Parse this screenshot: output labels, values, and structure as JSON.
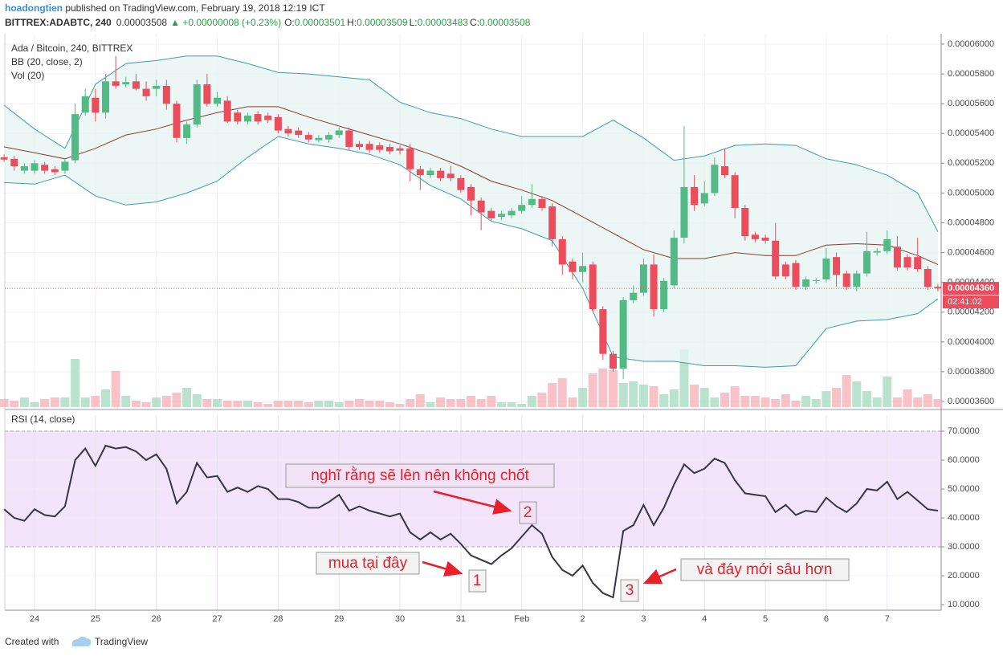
{
  "header": {
    "author": "hoadongtien",
    "published": " published on TradingView.com, February 19, 2018 12:19 ICT",
    "symbol": "BITTREX:ADABTC, 240",
    "last": "0.00003508",
    "change": "▲ +0.00000008 (+0.23%)",
    "ohlc": [
      {
        "label": "O:",
        "value": "0.00003501"
      },
      {
        "label": "H:",
        "value": "0.00003509"
      },
      {
        "label": "L:",
        "value": "0.00003483"
      },
      {
        "label": "C:",
        "value": "0.00003508"
      }
    ]
  },
  "chart_data": [
    {
      "type": "candlestick",
      "legend": [
        "Ada / Bitcoin, 240, BITTREX",
        "BB (20, close, 2)",
        "Vol (20)"
      ],
      "categories": [
        null,
        null,
        null,
        "24",
        null,
        null,
        null,
        null,
        null,
        "25",
        null,
        null,
        null,
        null,
        null,
        "26",
        null,
        null,
        null,
        null,
        null,
        "27",
        null,
        null,
        null,
        null,
        null,
        "28",
        null,
        null,
        null,
        null,
        null,
        "29",
        null,
        null,
        null,
        null,
        null,
        "30",
        null,
        null,
        null,
        null,
        null,
        "31",
        null,
        null,
        null,
        null,
        null,
        "Feb",
        null,
        null,
        null,
        null,
        null,
        "2",
        null,
        null,
        null,
        null,
        null,
        "3",
        null,
        null,
        null,
        null,
        null,
        "4",
        null,
        null,
        null,
        null,
        null,
        "5",
        null,
        null,
        null,
        null,
        null,
        "6",
        null,
        null,
        null,
        null,
        null,
        "7",
        null,
        null,
        null,
        null,
        null
      ],
      "open": [
        5.24e-05,
        5.23e-05,
        5.15e-05,
        5.15e-05,
        5.19e-05,
        5.16e-05,
        5.15e-05,
        5.22e-05,
        5.54e-05,
        5.64e-05,
        5.54e-05,
        5.75e-05,
        5.73e-05,
        5.75e-05,
        5.7e-05,
        5.7e-05,
        5.72e-05,
        5.6e-05,
        5.37e-05,
        5.46e-05,
        5.73e-05,
        5.6e-05,
        5.62e-05,
        5.54e-05,
        5.48e-05,
        5.53e-05,
        5.52e-05,
        5.51e-05,
        5.43e-05,
        5.42e-05,
        5.39e-05,
        5.355e-05,
        5.36e-05,
        5.39e-05,
        5.42e-05,
        5.33e-05,
        5.33e-05,
        5.32e-05,
        5.31e-05,
        5.3e-05,
        5.3e-05,
        5.16e-05,
        5.12e-05,
        5.15e-05,
        5.13e-05,
        5.1e-05,
        5.04e-05,
        4.95e-05,
        4.88e-05,
        4.84e-05,
        4.85e-05,
        4.88e-05,
        4.92e-05,
        4.96e-05,
        4.91e-05,
        4.69e-05,
        4.54e-05,
        4.47e-05,
        4.52e-05,
        4.22e-05,
        3.92e-05,
        3.82e-05,
        4.28e-05,
        4.33e-05,
        4.52e-05,
        4.22e-05,
        4.38e-05,
        4.7e-05,
        5.04e-05,
        4.93e-05,
        5e-05,
        5.18e-05,
        5.12e-05,
        4.9e-05,
        4.72e-05,
        4.7e-05,
        4.68e-05,
        4.52e-05,
        4.53e-05,
        4.37e-05,
        4.41e-05,
        4.42e-05,
        4.57e-05,
        4.46e-05,
        4.37e-05,
        4.46e-05,
        4.6e-05,
        4.61e-05,
        4.64e-05,
        4.57e-05,
        4.57e-05,
        4.49e-05,
        4.37e-05
      ],
      "high": [
        5.26e-05,
        5.25e-05,
        5.2e-05,
        5.22e-05,
        5.21e-05,
        5.18e-05,
        5.23e-05,
        5.6e-05,
        5.7e-05,
        5.7e-05,
        5.8e-05,
        5.92e-05,
        5.78e-05,
        5.8e-05,
        5.75e-05,
        5.76e-05,
        5.76e-05,
        5.62e-05,
        5.48e-05,
        5.76e-05,
        5.8e-05,
        5.68e-05,
        5.65e-05,
        5.56e-05,
        5.54e-05,
        5.55e-05,
        5.54e-05,
        5.53e-05,
        5.45e-05,
        5.44e-05,
        5.41e-05,
        5.39e-05,
        5.41e-05,
        5.44e-05,
        5.44e-05,
        5.35e-05,
        5.35e-05,
        5.34e-05,
        5.33e-05,
        5.32e-05,
        5.33e-05,
        5.18e-05,
        5.17e-05,
        5.17e-05,
        5.18e-05,
        5.12e-05,
        5.06e-05,
        4.97e-05,
        4.9e-05,
        4.88e-05,
        4.9e-05,
        4.98e-05,
        5.06e-05,
        4.98e-05,
        4.93e-05,
        4.71e-05,
        4.56e-05,
        4.6e-05,
        4.54e-05,
        4.24e-05,
        3.94e-05,
        4.3e-05,
        4.38e-05,
        4.56e-05,
        4.59e-05,
        4.43e-05,
        4.75e-05,
        5.45e-05,
        5.12e-05,
        5.08e-05,
        5.24e-05,
        5.3e-05,
        5.14e-05,
        4.92e-05,
        4.74e-05,
        4.72e-05,
        4.8e-05,
        4.54e-05,
        4.55e-05,
        4.44e-05,
        4.43e-05,
        4.63e-05,
        4.6e-05,
        4.48e-05,
        4.48e-05,
        4.74e-05,
        4.63e-05,
        4.75e-05,
        4.71e-05,
        4.59e-05,
        4.7e-05,
        4.51e-05,
        4.39e-05
      ],
      "low": [
        5.21e-05,
        5.15e-05,
        5.13e-05,
        5.13e-05,
        5.13e-05,
        5.12e-05,
        5.13e-05,
        5.2e-05,
        5.52e-05,
        5.48e-05,
        5.5e-05,
        5.7e-05,
        5.71e-05,
        5.69e-05,
        5.62e-05,
        5.65e-05,
        5.56e-05,
        5.34e-05,
        5.33e-05,
        5.44e-05,
        5.58e-05,
        5.58e-05,
        5.47e-05,
        5.46e-05,
        5.46e-05,
        5.46e-05,
        5.47e-05,
        5.4e-05,
        5.38e-05,
        5.37e-05,
        5.34e-05,
        5.34e-05,
        5.34e-05,
        5.37e-05,
        5.29e-05,
        5.29e-05,
        5.27e-05,
        5.27e-05,
        5.26e-05,
        5.26e-05,
        5.08e-05,
        5.02e-05,
        5.1e-05,
        5.08e-05,
        5.08e-05,
        5e-05,
        4.85e-05,
        4.75e-05,
        4.81e-05,
        4.82e-05,
        4.83e-05,
        4.86e-05,
        4.9e-05,
        4.88e-05,
        4.64e-05,
        4.45e-05,
        4.42e-05,
        4.4e-05,
        4.2e-05,
        3.88e-05,
        3.8e-05,
        3.75e-05,
        4.26e-05,
        4.31e-05,
        4.17e-05,
        4.2e-05,
        4.36e-05,
        4.66e-05,
        4.88e-05,
        4.91e-05,
        4.98e-05,
        5.1e-05,
        4.83e-05,
        4.68e-05,
        4.67e-05,
        4.66e-05,
        4.42e-05,
        4.42e-05,
        4.35e-05,
        4.35e-05,
        4.39e-05,
        4.4e-05,
        4.37e-05,
        4.35e-05,
        4.34e-05,
        4.44e-05,
        4.58e-05,
        4.59e-05,
        4.48e-05,
        4.48e-05,
        4.47e-05,
        4.35e-05,
        4.34e-05
      ],
      "close": [
        5.225e-05,
        5.18e-05,
        5.18e-05,
        5.2e-05,
        5.15e-05,
        5.14e-05,
        5.21e-05,
        5.53e-05,
        5.65e-05,
        5.54e-05,
        5.75e-05,
        5.72e-05,
        5.745e-05,
        5.7e-05,
        5.65e-05,
        5.72e-05,
        5.6e-05,
        5.37e-05,
        5.46e-05,
        5.73e-05,
        5.6e-05,
        5.64e-05,
        5.48e-05,
        5.48e-05,
        5.52e-05,
        5.48e-05,
        5.49e-05,
        5.42e-05,
        5.4e-05,
        5.39e-05,
        5.36e-05,
        5.37e-05,
        5.39e-05,
        5.42e-05,
        5.31e-05,
        5.31e-05,
        5.29e-05,
        5.29e-05,
        5.28e-05,
        5.285e-05,
        5.16e-05,
        5.12e-05,
        5.15e-05,
        5.1e-05,
        5.1e-05,
        5.02e-05,
        4.95e-05,
        4.87e-05,
        4.83e-05,
        4.86e-05,
        4.88e-05,
        4.92e-05,
        4.96e-05,
        4.9e-05,
        4.69e-05,
        4.52e-05,
        4.47e-05,
        4.51e-05,
        4.22e-05,
        3.92e-05,
        3.82e-05,
        4.28e-05,
        4.33e-05,
        4.52e-05,
        4.22e-05,
        4.41e-05,
        4.7e-05,
        5.04e-05,
        4.92e-05,
        5e-05,
        5.19e-05,
        5.12e-05,
        4.9e-05,
        4.71e-05,
        4.69e-05,
        4.68e-05,
        4.44e-05,
        4.44e-05,
        4.37e-05,
        4.42e-05,
        4.415e-05,
        4.56e-05,
        4.45e-05,
        4.37e-05,
        4.46e-05,
        4.61e-05,
        4.61e-05,
        4.69e-05,
        4.5e-05,
        4.5e-05,
        4.49e-05,
        4.37e-05,
        4.36e-05
      ],
      "volume": [
        10,
        8,
        12,
        6,
        10,
        12,
        12,
        60,
        12,
        14,
        22,
        45,
        14,
        8,
        6,
        12,
        14,
        18,
        24,
        16,
        10,
        10,
        8,
        8,
        8,
        6,
        4,
        8,
        8,
        8,
        6,
        8,
        8,
        6,
        8,
        10,
        8,
        8,
        6,
        4,
        10,
        16,
        6,
        12,
        10,
        10,
        14,
        10,
        14,
        6,
        6,
        4,
        14,
        18,
        30,
        36,
        12,
        24,
        42,
        48,
        46,
        30,
        32,
        28,
        26,
        16,
        22,
        72,
        28,
        24,
        12,
        18,
        26,
        14,
        14,
        12,
        10,
        16,
        8,
        14,
        10,
        20,
        24,
        40,
        32,
        20,
        12,
        38,
        12,
        22,
        12,
        16,
        10
      ],
      "up_color": "#53b987",
      "down_color": "#eb4d5c",
      "volume_up_color": "#a8dcc3",
      "volume_down_color": "#f6b3ba",
      "bb": {
        "x": [
          0,
          3,
          6,
          9,
          12,
          15,
          18,
          21,
          24,
          27,
          30,
          33,
          36,
          39,
          42,
          45,
          48,
          51,
          54,
          57,
          60,
          63,
          66,
          69,
          72,
          75,
          78,
          81,
          84,
          87,
          90,
          92
        ],
        "upper": [
          5.59e-05,
          5.43e-05,
          5.3e-05,
          5.73e-05,
          5.87e-05,
          5.89e-05,
          5.92e-05,
          5.92e-05,
          5.87e-05,
          5.81e-05,
          5.8e-05,
          5.78e-05,
          5.76e-05,
          5.61e-05,
          5.54e-05,
          5.5e-05,
          5.43e-05,
          5.38e-05,
          5.38e-05,
          5.38e-05,
          5.49e-05,
          5.37e-05,
          5.22e-05,
          5.25e-05,
          5.32e-05,
          5.33e-05,
          5.32e-05,
          5.23e-05,
          5.19e-05,
          5.12e-05,
          5e-05,
          4.74e-05
        ],
        "middle": [
          5.31e-05,
          5.27e-05,
          5.23e-05,
          5.3e-05,
          5.39e-05,
          5.43e-05,
          5.49e-05,
          5.54e-05,
          5.58e-05,
          5.58e-05,
          5.51e-05,
          5.45e-05,
          5.39e-05,
          5.33e-05,
          5.26e-05,
          5.18e-05,
          5.08e-05,
          5.02e-05,
          4.95e-05,
          4.84e-05,
          4.73e-05,
          4.62e-05,
          4.56e-05,
          4.56e-05,
          4.6e-05,
          4.58e-05,
          4.58e-05,
          4.65e-05,
          4.66e-05,
          4.65e-05,
          4.58e-05,
          4.52e-05
        ],
        "lower": [
          5.07e-05,
          5.06e-05,
          5.12e-05,
          4.98e-05,
          4.92e-05,
          4.94e-05,
          5e-05,
          5.08e-05,
          5.24e-05,
          5.38e-05,
          5.33e-05,
          5.3e-05,
          5.26e-05,
          5.19e-05,
          5.05e-05,
          4.96e-05,
          4.81e-05,
          4.76e-05,
          4.68e-05,
          4.36e-05,
          3.9e-05,
          3.87e-05,
          3.87e-05,
          3.84e-05,
          3.84e-05,
          3.83e-05,
          3.84e-05,
          4.09e-05,
          4.14e-05,
          4.15e-05,
          4.19e-05,
          4.29e-05
        ],
        "band_color": "#3f9ea0",
        "middle_color": "#8b3a34",
        "fill": "#e6f4f3"
      },
      "ylim": [
        3.557e-05,
        6.07e-05
      ],
      "yticks": [
        {
          "value": 3.6e-05,
          "label": "0.00003600"
        },
        {
          "value": 3.8e-05,
          "label": "0.00003800"
        },
        {
          "value": 4e-05,
          "label": "0.00004000"
        },
        {
          "value": 4.2e-05,
          "label": "0.00004200"
        },
        {
          "value": 4.4e-05,
          "label": "0.00004400"
        },
        {
          "value": 4.6e-05,
          "label": "0.00004600"
        },
        {
          "value": 4.8e-05,
          "label": "0.00004800"
        },
        {
          "value": 5e-05,
          "label": "0.00005000"
        },
        {
          "value": 5.2e-05,
          "label": "0.00005200"
        },
        {
          "value": 5.4e-05,
          "label": "0.00005400"
        },
        {
          "value": 5.6e-05,
          "label": "0.00005600"
        },
        {
          "value": 5.8e-05,
          "label": "0.00005800"
        },
        {
          "value": 6e-05,
          "label": "0.00006000"
        }
      ],
      "last_price": {
        "value": 4.36e-05,
        "label": "0.00004360"
      },
      "countdown": "02:41:02",
      "grid": true
    },
    {
      "type": "line",
      "legend": "RSI (14, close)",
      "color": "#3a3545",
      "band": [
        30,
        70
      ],
      "band_color": "#f3e4fb",
      "values": [
        43,
        40,
        39,
        43,
        41,
        40.5,
        44,
        60,
        64,
        58,
        65,
        64,
        64.5,
        63,
        60,
        62,
        57,
        45,
        49,
        59,
        54,
        54.5,
        49,
        50.5,
        49,
        51,
        50,
        46.5,
        46.5,
        45.5,
        43.5,
        43.5,
        45.5,
        48,
        42.5,
        44,
        42.5,
        41.5,
        40.5,
        41.5,
        35,
        32.5,
        35,
        32.5,
        34.5,
        31,
        27,
        25.5,
        24,
        27,
        29.5,
        33.5,
        37.5,
        34.5,
        26.5,
        22,
        20,
        23.5,
        17.5,
        14,
        12.5,
        35.5,
        37.5,
        44.5,
        37.5,
        43.5,
        51.5,
        58.5,
        55.5,
        57,
        60.5,
        59,
        53,
        48.5,
        48,
        47.5,
        42,
        44.5,
        41,
        42.5,
        42,
        47,
        44,
        42,
        45,
        50,
        49.5,
        52.5,
        46.5,
        49,
        46,
        43,
        42.5
      ],
      "ylim": [
        8.06,
        75.56
      ],
      "yticks": [
        {
          "value": 10,
          "label": "10.0000"
        },
        {
          "value": 20,
          "label": "20.0000"
        },
        {
          "value": 30,
          "label": "30.0000"
        },
        {
          "value": 40,
          "label": "40.0000"
        },
        {
          "value": 50,
          "label": "50.0000"
        },
        {
          "value": 60,
          "label": "60.0000"
        },
        {
          "value": 70,
          "label": "70.0000"
        }
      ],
      "annotations": [
        "nghĩ rằng sẽ lên nên không chốt",
        "2",
        "mua tại đây",
        "1",
        "và đáy mới sâu hơn",
        "3"
      ]
    }
  ],
  "footer": {
    "created": "Created with",
    "brand": "TradingView"
  }
}
